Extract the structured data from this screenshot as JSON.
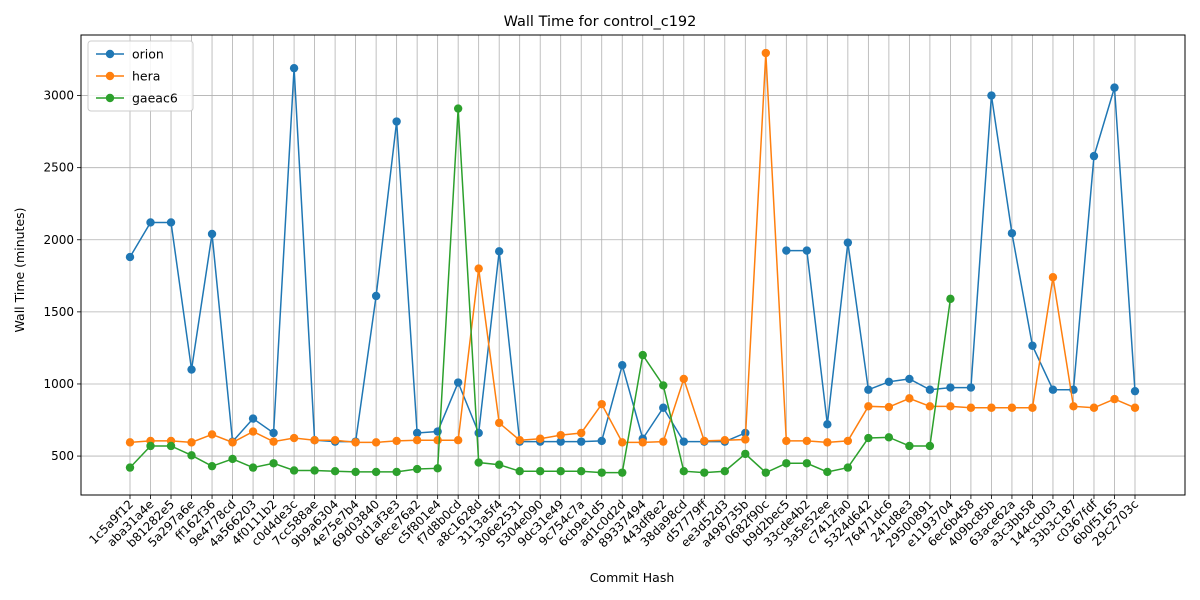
{
  "chart_data": {
    "type": "line",
    "title": "Wall Time for control_c192",
    "xlabel": "Commit Hash",
    "ylabel": "Wall Time (minutes)",
    "ylim": [
      230,
      3420
    ],
    "yticks": [
      500,
      1000,
      1500,
      2000,
      2500,
      3000
    ],
    "grid": true,
    "legend_position": "top-left",
    "categories": [
      "1c5a9f12",
      "aba31a4e",
      "b81282e5",
      "5a297a6e",
      "ff162f36",
      "9e4778cd",
      "4a566203",
      "4f0111b2",
      "c0d4de3c",
      "7cc588ae",
      "9b9a6304",
      "4e75e7b4",
      "69d03840",
      "0d1af3e3",
      "6ece76a2",
      "c5f801e4",
      "f7d8b0cd",
      "a8c1628d",
      "3113a5f4",
      "306e2531",
      "5304e090",
      "9dc31e49",
      "9c754c7a",
      "6cb9e1d5",
      "ad1c0d2d",
      "89337494",
      "443df8e2",
      "38da98cd",
      "d57779ff",
      "ee3d52d3",
      "a498735b",
      "0682f90c",
      "b9d2bec5",
      "33cde4b2",
      "3a5e52ee",
      "c7412fa0",
      "5324d642",
      "76471dc6",
      "241d8e3",
      "29500891",
      "e1193704",
      "6ec6b458",
      "409bc85b",
      "63ace62a",
      "a3c3bb58",
      "144ccb03",
      "33b3c187",
      "c0367fdf",
      "6b0f5165",
      "29c2703c"
    ],
    "series": [
      {
        "name": "orion",
        "color": "#1f77b4",
        "values": [
          1880,
          2120,
          2120,
          1100,
          2040,
          600,
          760,
          660,
          3190,
          610,
          600,
          600,
          1610,
          2820,
          660,
          670,
          1010,
          660,
          1920,
          600,
          600,
          600,
          600,
          605,
          1130,
          620,
          835,
          600,
          600,
          600,
          660,
          null,
          1925,
          1925,
          720,
          1980,
          960,
          1015,
          1035,
          960,
          975,
          975,
          3000,
          2045,
          1265,
          960,
          960,
          2580,
          3055,
          950
        ]
      },
      {
        "name": "hera",
        "color": "#ff7f0e",
        "values": [
          595,
          605,
          605,
          595,
          650,
          595,
          670,
          600,
          625,
          610,
          610,
          595,
          595,
          605,
          610,
          610,
          610,
          1800,
          730,
          610,
          620,
          645,
          660,
          860,
          595,
          595,
          600,
          1035,
          605,
          610,
          615,
          3295,
          605,
          605,
          595,
          605,
          845,
          840,
          900,
          845,
          845,
          835,
          835,
          835,
          835,
          1740,
          845,
          835,
          895,
          835
        ]
      },
      {
        "name": "gaeac6",
        "color": "#2ca02c",
        "values": [
          420,
          570,
          570,
          505,
          430,
          480,
          420,
          450,
          400,
          400,
          395,
          390,
          390,
          390,
          410,
          415,
          2910,
          455,
          440,
          395,
          395,
          395,
          395,
          385,
          385,
          1200,
          990,
          395,
          385,
          395,
          515,
          385,
          450,
          450,
          390,
          420,
          625,
          630,
          570,
          570,
          1590,
          null,
          null,
          null,
          null,
          null,
          null,
          null,
          null,
          null
        ]
      }
    ]
  }
}
